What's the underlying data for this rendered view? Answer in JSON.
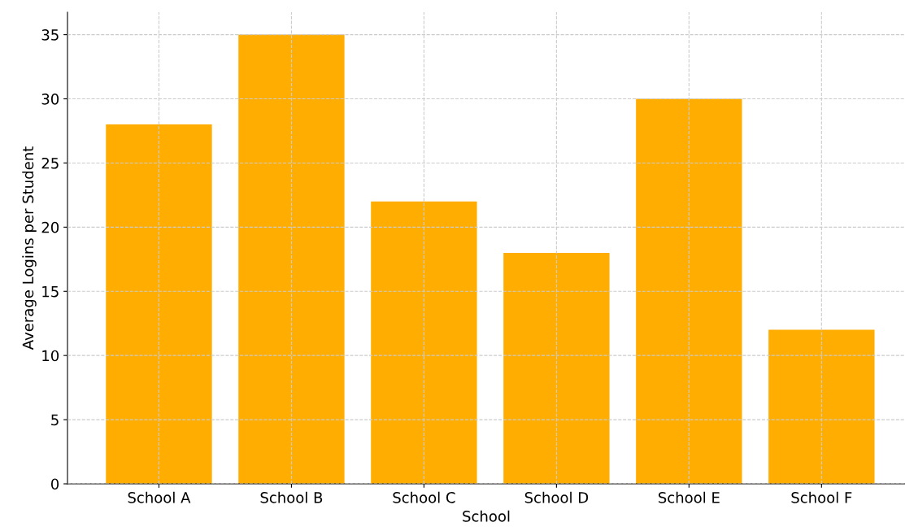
{
  "chart_data": {
    "type": "bar",
    "xlabel": "School",
    "ylabel": "Average Logins per Student",
    "categories": [
      "School A",
      "School B",
      "School C",
      "School D",
      "School E",
      "School F"
    ],
    "values": [
      28,
      35,
      22,
      18,
      30,
      12
    ],
    "color": "#ffad00",
    "ylim": [
      0,
      36.75
    ],
    "yticks": [
      0,
      5,
      10,
      15,
      20,
      25,
      30,
      35
    ],
    "grid": true
  }
}
